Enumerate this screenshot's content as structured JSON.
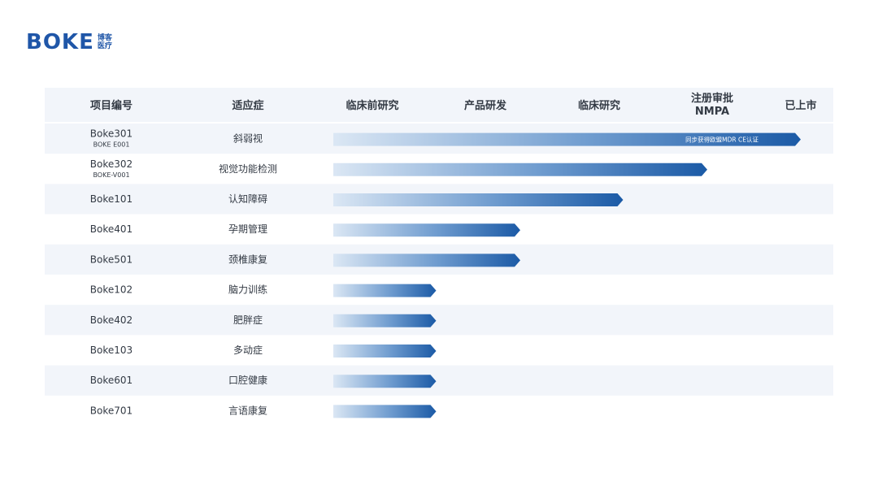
{
  "logo": {
    "wordmark": "BOKE",
    "cn_line1": "博客",
    "cn_line2": "医疗"
  },
  "colors": {
    "accent": "#1f56a8",
    "bar_dark": "#1b5aa6",
    "bar_light": "#dbe7f4",
    "band": "#f2f5fa"
  },
  "chart_data": {
    "type": "bar",
    "orientation": "horizontal",
    "columns": {
      "project": "项目编号",
      "indication": "适应症",
      "stages": [
        "临床前研究",
        "产品研发",
        "临床研究",
        "注册审批\nNMPA",
        "已上市"
      ]
    },
    "rows": [
      {
        "code": "Boke301",
        "sub_code": "BOKE E001",
        "indication": "斜弱视",
        "stage_index": 5,
        "note": "同步获得欧盟MDR CE认证"
      },
      {
        "code": "Boke302",
        "sub_code": "BOKE-V001",
        "indication": "视觉功能检测",
        "stage_index": 4,
        "note": ""
      },
      {
        "code": "Boke101",
        "sub_code": "",
        "indication": "认知障碍",
        "stage_index": 3.1,
        "note": ""
      },
      {
        "code": "Boke401",
        "sub_code": "",
        "indication": "孕期管理",
        "stage_index": 2,
        "note": ""
      },
      {
        "code": "Boke501",
        "sub_code": "",
        "indication": "颈椎康复",
        "stage_index": 2,
        "note": ""
      },
      {
        "code": "Boke102",
        "sub_code": "",
        "indication": "脑力训练",
        "stage_index": 1.1,
        "note": ""
      },
      {
        "code": "Boke402",
        "sub_code": "",
        "indication": "肥胖症",
        "stage_index": 1.1,
        "note": ""
      },
      {
        "code": "Boke103",
        "sub_code": "",
        "indication": "多动症",
        "stage_index": 1.1,
        "note": ""
      },
      {
        "code": "Boke601",
        "sub_code": "",
        "indication": "口腔健康",
        "stage_index": 1.1,
        "note": ""
      },
      {
        "code": "Boke701",
        "sub_code": "",
        "indication": "言语康复",
        "stage_index": 1.1,
        "note": ""
      }
    ],
    "xlim": [
      0,
      5
    ]
  }
}
